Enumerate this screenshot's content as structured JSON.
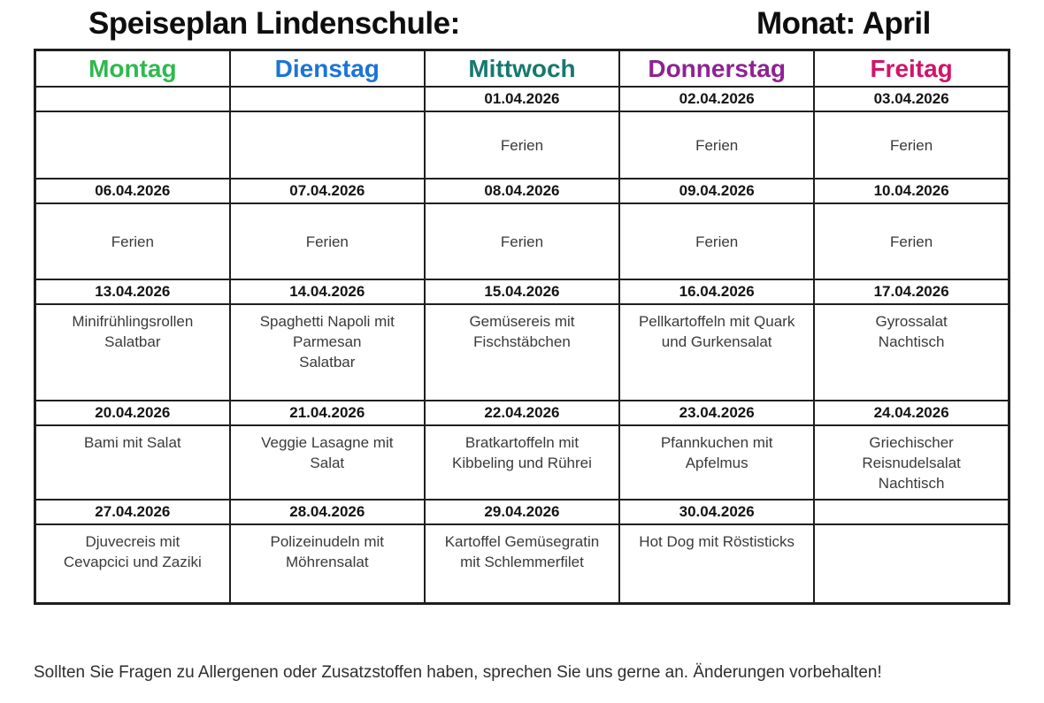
{
  "page_title": {
    "left": "Speiseplan Lindenschule:",
    "right": "Monat: April"
  },
  "table": {
    "day_headers": [
      {
        "label": "Montag",
        "color": "#2eb94e"
      },
      {
        "label": "Dienstag",
        "color": "#1b74d9"
      },
      {
        "label": "Mittwoch",
        "color": "#17796d"
      },
      {
        "label": "Donnerstag",
        "color": "#8e2392"
      },
      {
        "label": "Freitag",
        "color": "#d31368"
      }
    ],
    "weeks": [
      {
        "dates": [
          "",
          "",
          "01.04.2026",
          "02.04.2026",
          "03.04.2026"
        ],
        "meals": [
          [],
          [],
          [
            "Ferien"
          ],
          [
            "Ferien"
          ],
          [
            "Ferien"
          ]
        ]
      },
      {
        "dates": [
          "06.04.2026",
          "07.04.2026",
          "08.04.2026",
          "09.04.2026",
          "10.04.2026"
        ],
        "meals": [
          [
            "Ferien"
          ],
          [
            "Ferien"
          ],
          [
            "Ferien"
          ],
          [
            "Ferien"
          ],
          [
            "Ferien"
          ]
        ]
      },
      {
        "dates": [
          "13.04.2026",
          "14.04.2026",
          "15.04.2026",
          "16.04.2026",
          "17.04.2026"
        ],
        "meals": [
          [
            "Minifrühlingsrollen",
            "Salatbar"
          ],
          [
            "Spaghetti Napoli mit",
            "Parmesan",
            "Salatbar"
          ],
          [
            "Gemüsereis mit",
            "Fischstäbchen"
          ],
          [
            "Pellkartoffeln mit Quark",
            "und Gurkensalat"
          ],
          [
            "Gyrossalat",
            "Nachtisch"
          ]
        ]
      },
      {
        "dates": [
          "20.04.2026",
          "21.04.2026",
          "22.04.2026",
          "23.04.2026",
          "24.04.2026"
        ],
        "meals": [
          [
            "Bami mit Salat"
          ],
          [
            "Veggie Lasagne mit",
            "Salat"
          ],
          [
            "Bratkartoffeln mit",
            "Kibbeling und Rührei"
          ],
          [
            "Pfannkuchen mit",
            "Apfelmus"
          ],
          [
            "Griechischer",
            "Reisnudelsalat",
            "Nachtisch"
          ]
        ]
      },
      {
        "dates": [
          "27.04.2026",
          "28.04.2026",
          "29.04.2026",
          "30.04.2026",
          ""
        ],
        "meals": [
          [
            "Djuvecreis mit",
            "Cevapcici und Zaziki"
          ],
          [
            "Polizeinudeln mit",
            "Möhrensalat"
          ],
          [
            "Kartoffel Gemüsegratin",
            "mit Schlemmerfilet"
          ],
          [
            "Hot Dog mit Röstisticks"
          ],
          []
        ]
      }
    ]
  },
  "footer_note": "Sollten Sie Fragen zu Allergenen oder Zusatzstoffen haben, sprechen Sie uns gerne an. Änderungen vorbehalten!"
}
